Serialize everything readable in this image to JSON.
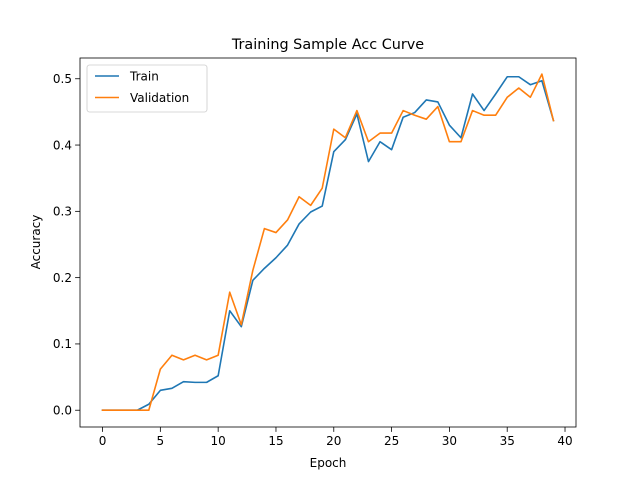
{
  "chart_data": {
    "type": "line",
    "title": "Training Sample Acc Curve",
    "xlabel": "Epoch",
    "ylabel": "Accuracy",
    "xlim": [
      -1.95,
      40.95
    ],
    "ylim": [
      -0.0253,
      0.5313
    ],
    "xticks": [
      0,
      5,
      10,
      15,
      20,
      25,
      30,
      35,
      40
    ],
    "xtick_labels": [
      "0",
      "5",
      "10",
      "15",
      "20",
      "25",
      "30",
      "35",
      "40"
    ],
    "yticks": [
      0.0,
      0.1,
      0.2,
      0.3,
      0.4,
      0.5
    ],
    "ytick_labels": [
      "0.0",
      "0.1",
      "0.2",
      "0.3",
      "0.4",
      "0.5"
    ],
    "grid": false,
    "legend_position": "top-left",
    "x": [
      0,
      1,
      2,
      3,
      4,
      5,
      6,
      7,
      8,
      9,
      10,
      11,
      12,
      13,
      14,
      15,
      16,
      17,
      18,
      19,
      20,
      21,
      22,
      23,
      24,
      25,
      26,
      27,
      28,
      29,
      30,
      31,
      32,
      33,
      34,
      35,
      36,
      37,
      38,
      39
    ],
    "series": [
      {
        "name": "Train",
        "color": "#1f77b4",
        "values": [
          0.0,
          0.0,
          0.0,
          0.0,
          0.009,
          0.03,
          0.033,
          0.043,
          0.042,
          0.042,
          0.052,
          0.15,
          0.126,
          0.196,
          0.214,
          0.23,
          0.249,
          0.281,
          0.299,
          0.308,
          0.39,
          0.408,
          0.447,
          0.375,
          0.405,
          0.393,
          0.442,
          0.449,
          0.468,
          0.465,
          0.43,
          0.411,
          0.477,
          0.452,
          0.477,
          0.503,
          0.503,
          0.491,
          0.497,
          0.437
        ]
      },
      {
        "name": "Validation",
        "color": "#ff7f0e",
        "values": [
          0.0,
          0.0,
          0.0,
          0.0,
          0.0,
          0.062,
          0.083,
          0.076,
          0.083,
          0.076,
          0.083,
          0.178,
          0.129,
          0.211,
          0.274,
          0.268,
          0.287,
          0.322,
          0.309,
          0.335,
          0.424,
          0.411,
          0.452,
          0.405,
          0.418,
          0.418,
          0.452,
          0.445,
          0.439,
          0.458,
          0.405,
          0.405,
          0.452,
          0.445,
          0.445,
          0.472,
          0.486,
          0.472,
          0.507,
          0.437
        ]
      }
    ]
  }
}
